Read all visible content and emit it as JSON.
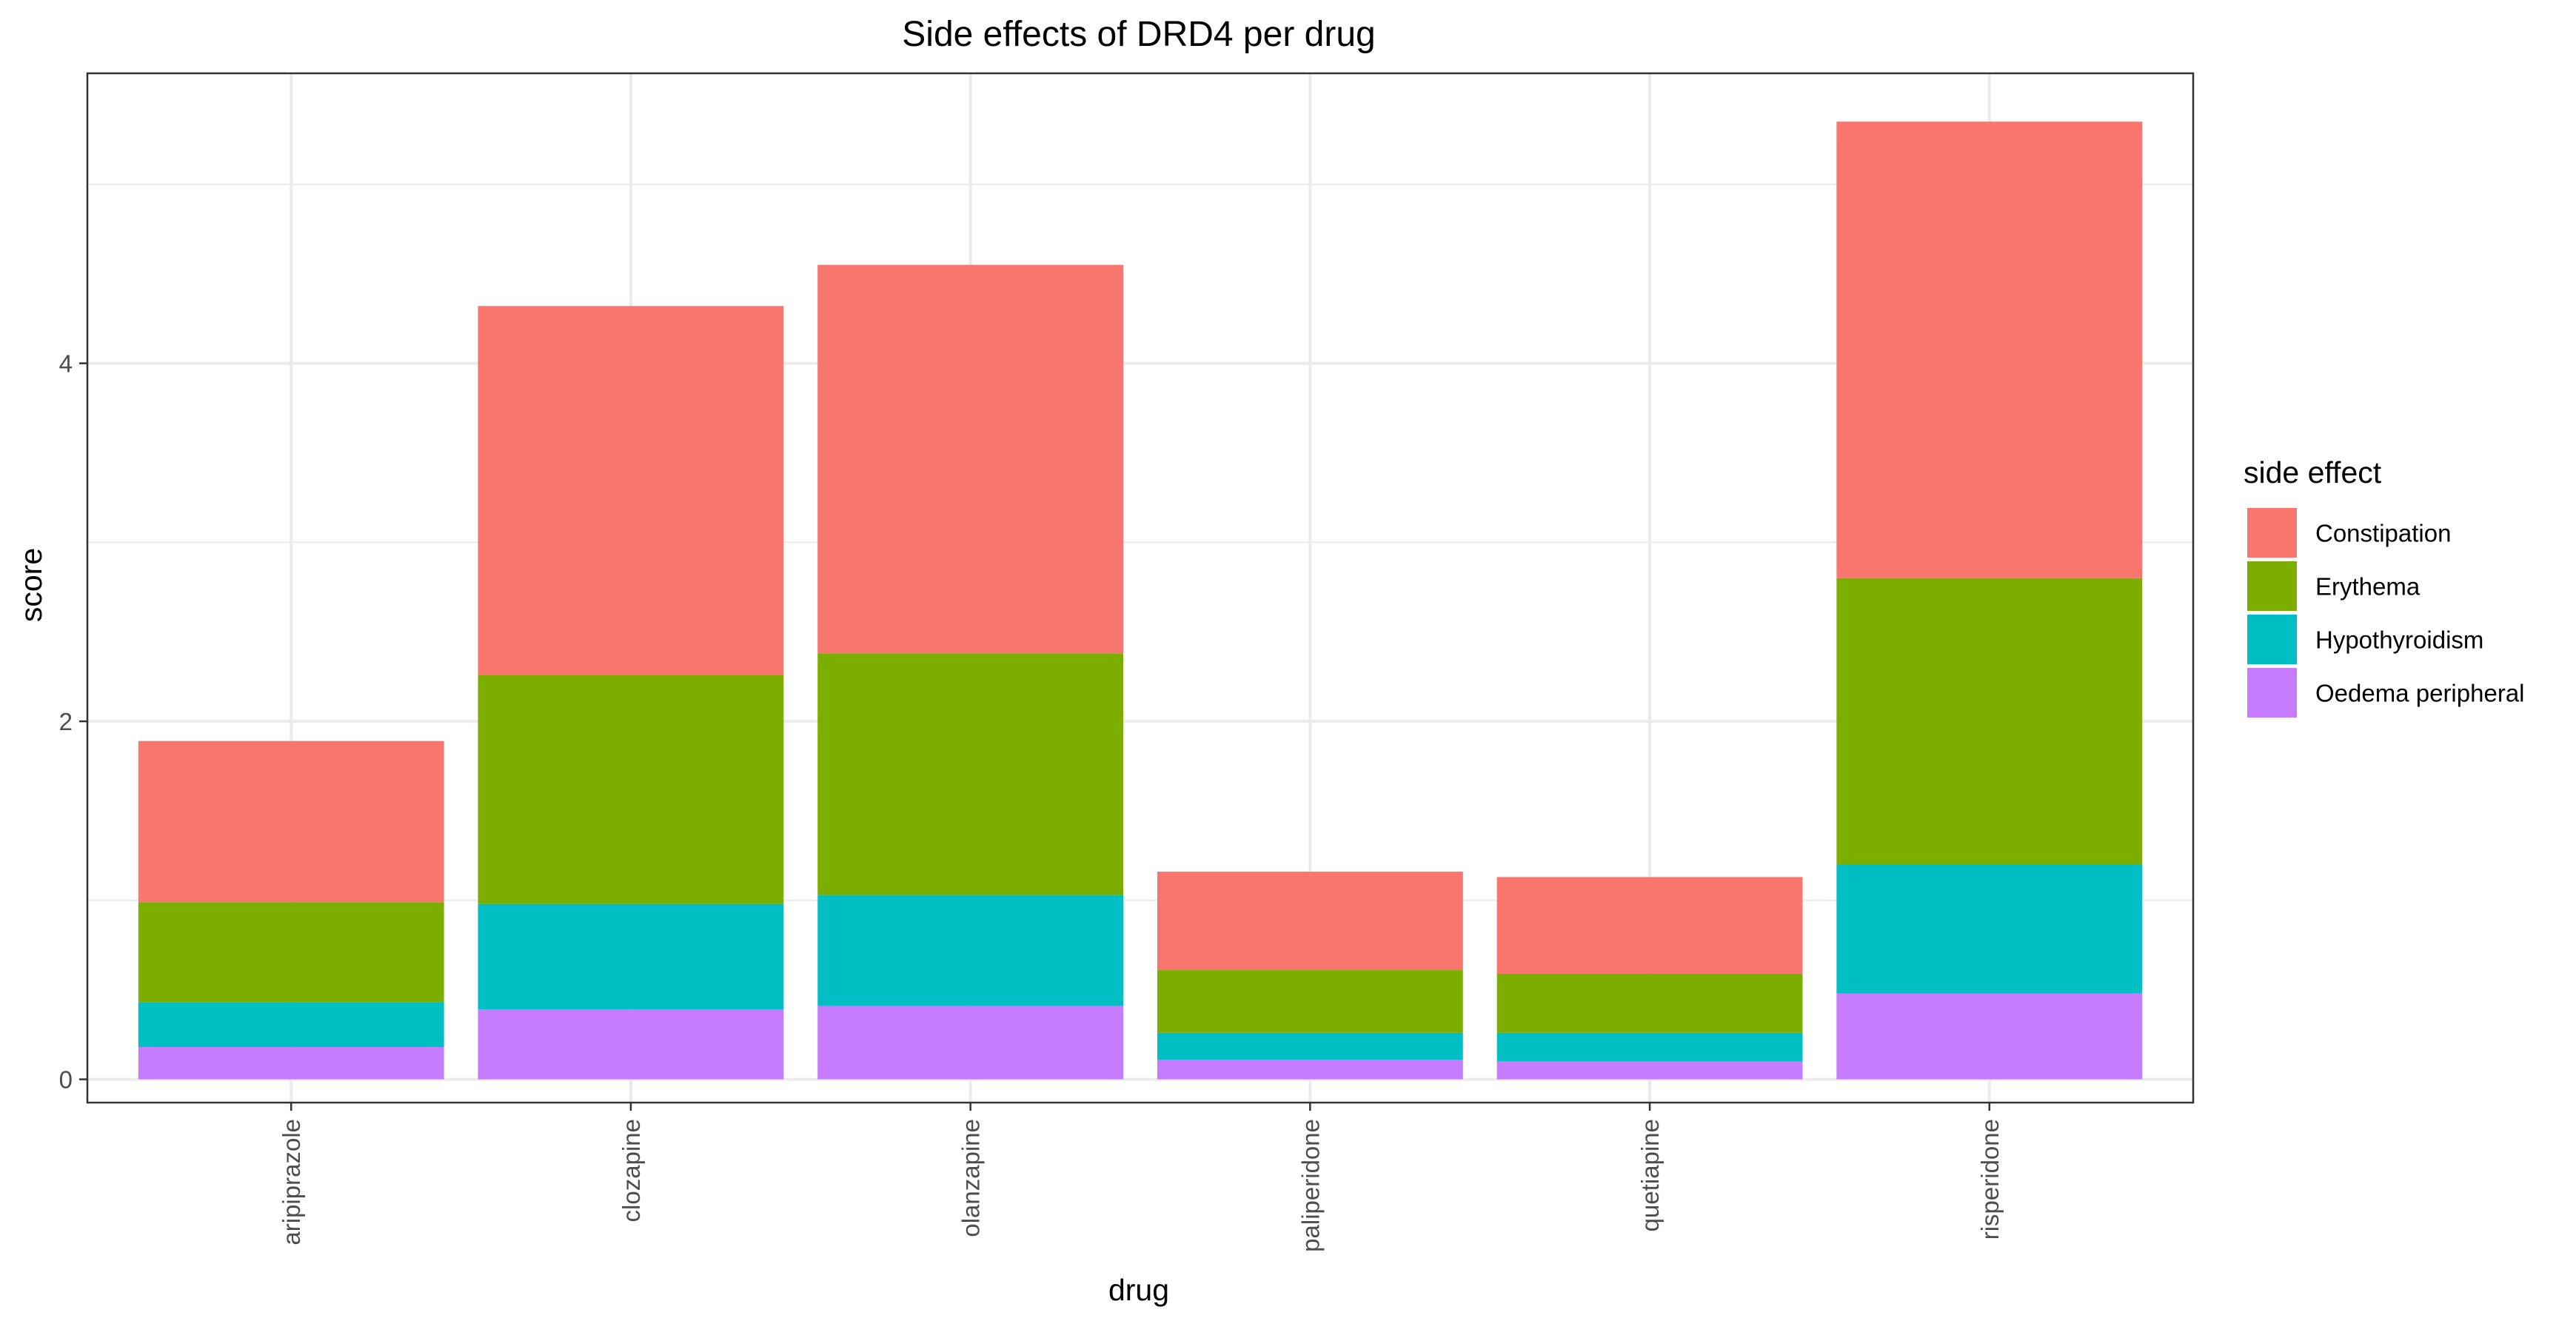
{
  "chart_data": {
    "type": "bar",
    "stacked": true,
    "title": "Side effects of DRD4 per drug",
    "xlabel": "drug",
    "ylabel": "score",
    "ylim": [
      -0.13,
      5.62
    ],
    "yticks": [
      0,
      2,
      4
    ],
    "y_minor_ticks": [
      1,
      3,
      5
    ],
    "grid": true,
    "categories": [
      "aripiprazole",
      "clozapine",
      "olanzapine",
      "paliperidone",
      "quetiapine",
      "risperidone"
    ],
    "legend": {
      "title": "side effect",
      "placement": "right"
    },
    "series": [
      {
        "name": "Oedema peripheral",
        "color": "#C77CFF",
        "values": [
          0.18,
          0.39,
          0.41,
          0.11,
          0.1,
          0.48
        ]
      },
      {
        "name": "Hypothyroidism",
        "color": "#00BFC4",
        "values": [
          0.25,
          0.59,
          0.62,
          0.15,
          0.16,
          0.72
        ]
      },
      {
        "name": "Erythema",
        "color": "#7CAE00",
        "values": [
          0.56,
          1.28,
          1.35,
          0.35,
          0.33,
          1.6
        ]
      },
      {
        "name": "Constipation",
        "color": "#F8766D",
        "values": [
          0.9,
          2.06,
          2.17,
          0.55,
          0.54,
          2.55
        ]
      }
    ],
    "legend_order": [
      "Constipation",
      "Erythema",
      "Hypothyroidism",
      "Oedema peripheral"
    ]
  }
}
